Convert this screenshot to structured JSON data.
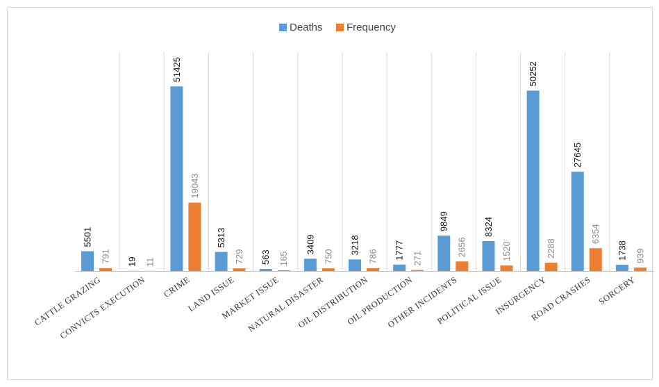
{
  "chart_data": {
    "type": "bar",
    "categories": [
      "CATTLE GRAZING",
      "CONVICTS EXECUTION",
      "CRIME",
      "LAND ISSUE",
      "MARKET ISSUE",
      "NATURAL DISASTER",
      "OIL DISTRIBUTION",
      "OIL PRODUCTION",
      "OTHER INCIDENTS",
      "POLITICAL ISSUE",
      "INSURGENCY",
      "ROAD CRASHES",
      "SORCERY"
    ],
    "series": [
      {
        "name": "Deaths",
        "color": "#5b9bd5",
        "values": [
          5501,
          19,
          51425,
          5313,
          563,
          3409,
          3218,
          1777,
          9849,
          8324,
          50252,
          27645,
          1738
        ]
      },
      {
        "name": "Frequency",
        "color": "#ed7d31",
        "values": [
          791,
          11,
          19043,
          729,
          165,
          750,
          786,
          271,
          2656,
          1520,
          2288,
          6354,
          939
        ]
      }
    ],
    "ylim": [
      0,
      60000
    ],
    "legend": "top"
  }
}
